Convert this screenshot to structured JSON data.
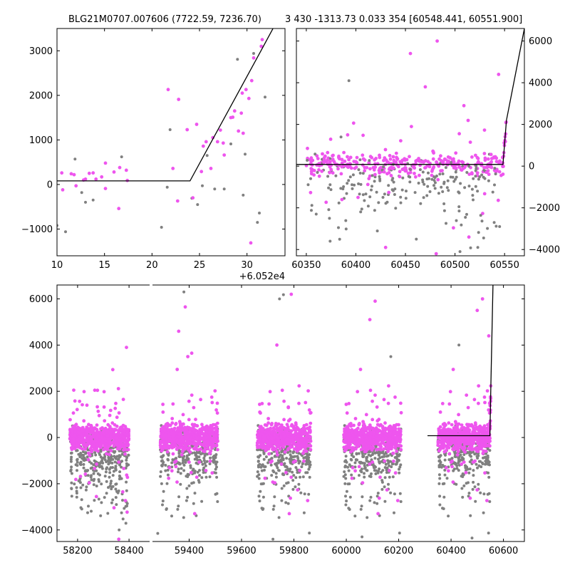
{
  "title_left": "BLG21M0707.007606 (7722.59, 7236.70)",
  "title_right": "3 430 -1313.73 0.033 354 [60548.441, 60551.900]",
  "colors": {
    "pink": "#ee55ee",
    "gray": "#808080",
    "fit": "#000000"
  },
  "chart_data": [
    {
      "panel": "top-left",
      "type": "scatter",
      "x_offset_label": "+6.052e4",
      "xlim": [
        10,
        34
      ],
      "ylim": [
        -1600,
        3500
      ],
      "xticks": [
        10,
        15,
        20,
        25,
        30
      ],
      "yticks": [
        -1000,
        0,
        1000,
        2000,
        3000
      ],
      "grid": false,
      "pink_points": [
        [
          10.5,
          260
        ],
        [
          10.6,
          -120
        ],
        [
          11.5,
          240
        ],
        [
          11.8,
          220
        ],
        [
          12.0,
          -30
        ],
        [
          12.8,
          100
        ],
        [
          13.0,
          120
        ],
        [
          13.4,
          250
        ],
        [
          13.8,
          260
        ],
        [
          14.1,
          120
        ],
        [
          14.7,
          170
        ],
        [
          15.1,
          -90
        ],
        [
          15.1,
          480
        ],
        [
          16.0,
          280
        ],
        [
          16.5,
          -540
        ],
        [
          16.6,
          380
        ],
        [
          17.3,
          320
        ],
        [
          17.4,
          90
        ],
        [
          21.7,
          2130
        ],
        [
          22.2,
          360
        ],
        [
          22.7,
          -370
        ],
        [
          22.8,
          1910
        ],
        [
          23.7,
          1230
        ],
        [
          24.3,
          -300
        ],
        [
          24.7,
          1350
        ],
        [
          25.2,
          290
        ],
        [
          25.4,
          860
        ],
        [
          25.7,
          960
        ],
        [
          26.2,
          360
        ],
        [
          26.4,
          1050
        ],
        [
          26.9,
          960
        ],
        [
          27.2,
          1220
        ],
        [
          27.5,
          930
        ],
        [
          27.6,
          660
        ],
        [
          28.3,
          1500
        ],
        [
          28.5,
          1510
        ],
        [
          28.7,
          1650
        ],
        [
          29.1,
          1200
        ],
        [
          29.4,
          1600
        ],
        [
          29.5,
          2050
        ],
        [
          29.6,
          1150
        ],
        [
          29.9,
          2130
        ],
        [
          30.2,
          1930
        ],
        [
          30.4,
          -1310
        ],
        [
          30.5,
          2330
        ],
        [
          30.7,
          2840
        ],
        [
          31.5,
          3100
        ],
        [
          31.6,
          3250
        ]
      ],
      "gray_points": [
        [
          10.0,
          -920
        ],
        [
          10.9,
          -1060
        ],
        [
          11.9,
          570
        ],
        [
          12.6,
          -180
        ],
        [
          13.0,
          -400
        ],
        [
          13.8,
          -350
        ],
        [
          16.8,
          620
        ],
        [
          21.0,
          -960
        ],
        [
          21.6,
          -60
        ],
        [
          21.9,
          1230
        ],
        [
          24.2,
          -310
        ],
        [
          24.8,
          -450
        ],
        [
          25.3,
          -30
        ],
        [
          25.8,
          650
        ],
        [
          26.6,
          -100
        ],
        [
          27.6,
          -100
        ],
        [
          28.3,
          910
        ],
        [
          29.0,
          2810
        ],
        [
          29.6,
          -240
        ],
        [
          29.8,
          680
        ],
        [
          30.7,
          2940
        ],
        [
          31.1,
          -850
        ],
        [
          31.3,
          -640
        ],
        [
          31.9,
          1960
        ]
      ],
      "fit_line": [
        [
          10,
          80
        ],
        [
          24,
          80
        ],
        [
          31.6,
          3050
        ],
        [
          34,
          4000
        ]
      ]
    },
    {
      "panel": "top-right",
      "type": "scatter",
      "xlim": [
        60340,
        60570
      ],
      "ylim": [
        -4300,
        6600
      ],
      "xticks": [
        60350,
        60400,
        60450,
        60500,
        60550
      ],
      "yticks": [
        -4000,
        -2000,
        0,
        2000,
        4000,
        6000
      ],
      "y_axis_side": "right",
      "grid": false,
      "fit_line": [
        [
          60340,
          80
        ],
        [
          60544.2,
          80
        ],
        [
          60548.4,
          80
        ],
        [
          60551.9,
          2200
        ],
        [
          60570,
          6600
        ]
      ],
      "outlier_points": [
        {
          "x": 60455,
          "y": 5400,
          "c": "pink"
        },
        {
          "x": 60482,
          "y": 6000,
          "c": "pink"
        },
        {
          "x": 60470,
          "y": 3800,
          "c": "pink"
        },
        {
          "x": 60393,
          "y": 4100,
          "c": "gray"
        },
        {
          "x": 60544,
          "y": 4400,
          "c": "pink"
        },
        {
          "x": 60509,
          "y": 2900,
          "c": "pink"
        },
        {
          "x": 60456,
          "y": 1900,
          "c": "pink"
        },
        {
          "x": 60385,
          "y": 1400,
          "c": "gray"
        },
        {
          "x": 60430,
          "y": -3900,
          "c": "pink"
        },
        {
          "x": 60481,
          "y": -4200,
          "c": "pink"
        },
        {
          "x": 60461,
          "y": -3500,
          "c": "gray"
        },
        {
          "x": 60523,
          "y": -3900,
          "c": "gray"
        },
        {
          "x": 60505,
          "y": -4100,
          "c": "gray"
        },
        {
          "x": 60545,
          "y": -2900,
          "c": "gray"
        },
        {
          "x": 60360,
          "y": -2300,
          "c": "gray"
        },
        {
          "x": 60374,
          "y": -3600,
          "c": "gray"
        },
        {
          "x": 60514,
          "y": -3400,
          "c": "pink"
        }
      ]
    },
    {
      "panel": "bottom",
      "type": "scatter",
      "broken_x_axis": true,
      "segments": [
        {
          "xlim": [
            58120,
            58480
          ],
          "xticks": [
            58200,
            58400
          ]
        },
        {
          "xlim": [
            59260,
            60680
          ],
          "xticks": [
            59400,
            59600,
            59800,
            60000,
            60200,
            60400,
            60600
          ]
        }
      ],
      "ylim": [
        -4500,
        6600
      ],
      "yticks": [
        -4000,
        -2000,
        0,
        2000,
        4000,
        6000
      ],
      "grid": false,
      "seasons": [
        {
          "x0": 58170,
          "x1": 58400
        },
        {
          "x0": 59290,
          "x1": 59510
        },
        {
          "x0": 59660,
          "x1": 59865
        },
        {
          "x0": 59990,
          "x1": 60210
        },
        {
          "x0": 60350,
          "x1": 60549
        }
      ],
      "fit_line": [
        [
          60310,
          80
        ],
        [
          60548.4,
          80
        ],
        [
          60551.9,
          2200
        ],
        [
          60560,
          6600
        ]
      ],
      "outlier_points": [
        {
          "x": 58185,
          "y": 2050,
          "c": "pink"
        },
        {
          "x": 58390,
          "y": 3900,
          "c": "pink"
        },
        {
          "x": 59380,
          "y": 6300,
          "c": "gray"
        },
        {
          "x": 59385,
          "y": 5650,
          "c": "pink"
        },
        {
          "x": 59360,
          "y": 4600,
          "c": "pink"
        },
        {
          "x": 59410,
          "y": 3650,
          "c": "pink"
        },
        {
          "x": 59395,
          "y": 3500,
          "c": "pink"
        },
        {
          "x": 59760,
          "y": 6180,
          "c": "gray"
        },
        {
          "x": 59790,
          "y": 6200,
          "c": "pink"
        },
        {
          "x": 59745,
          "y": 6000,
          "c": "gray"
        },
        {
          "x": 60090,
          "y": 5100,
          "c": "pink"
        },
        {
          "x": 60110,
          "y": 5900,
          "c": "pink"
        },
        {
          "x": 60520,
          "y": 6000,
          "c": "pink"
        },
        {
          "x": 60500,
          "y": 5500,
          "c": "pink"
        },
        {
          "x": 60430,
          "y": 4000,
          "c": "gray"
        },
        {
          "x": 60544,
          "y": 4400,
          "c": "pink"
        },
        {
          "x": 60170,
          "y": 3500,
          "c": "gray"
        },
        {
          "x": 59735,
          "y": 4000,
          "c": "pink"
        },
        {
          "x": 59280,
          "y": -4150,
          "c": "gray"
        },
        {
          "x": 60060,
          "y": -4300,
          "c": "gray"
        },
        {
          "x": 60480,
          "y": -4350,
          "c": "gray"
        },
        {
          "x": 58360,
          "y": -4400,
          "c": "pink"
        },
        {
          "x": 59720,
          "y": -4400,
          "c": "gray"
        }
      ]
    }
  ]
}
